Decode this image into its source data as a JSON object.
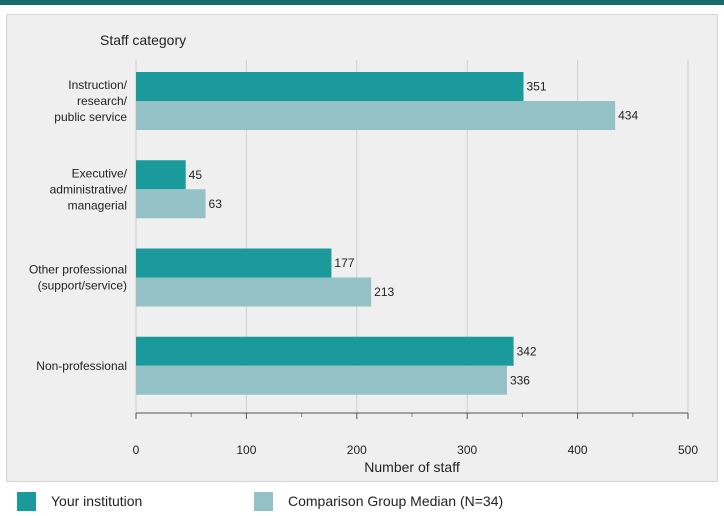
{
  "chart_data": {
    "type": "bar",
    "orientation": "horizontal",
    "title": "Staff category",
    "xlabel": "Number of staff",
    "ylabel": "",
    "xlim": [
      0,
      500
    ],
    "xticks": [
      0,
      100,
      200,
      300,
      400,
      500
    ],
    "grid": true,
    "legend_position": "bottom",
    "categories": [
      "Instruction/ research/ public service",
      "Executive/ administrative/ managerial",
      "Other professional (support/service)",
      "Non-professional"
    ],
    "category_lines": [
      [
        "Instruction/",
        "research/",
        "public service"
      ],
      [
        "Executive/",
        "administrative/",
        "managerial"
      ],
      [
        "Other professional",
        "(support/service)"
      ],
      [
        "Non-professional"
      ]
    ],
    "series": [
      {
        "name": "Your institution",
        "color": "#1a9a9a",
        "values": [
          351,
          45,
          177,
          342
        ]
      },
      {
        "name": "Comparison Group Median (N=34)",
        "color": "#93c1c5",
        "values": [
          434,
          63,
          213,
          336
        ]
      }
    ]
  }
}
